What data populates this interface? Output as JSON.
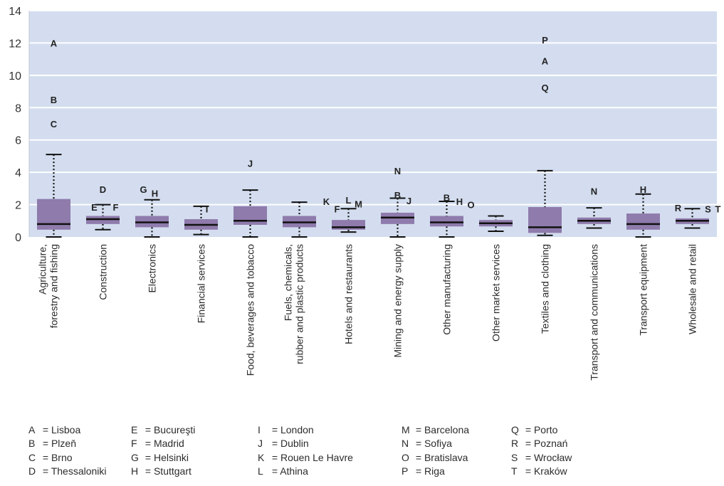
{
  "chart_data": {
    "type": "box",
    "ylim": [
      0,
      14
    ],
    "yticks": [
      0,
      2,
      4,
      6,
      8,
      10,
      12,
      14
    ],
    "grid": true,
    "colors": {
      "plot_bg": "#d3ddef",
      "box": "#8f7bac",
      "median": "#111111",
      "whisker": "#111111",
      "grid": "#ffffff"
    },
    "categories": [
      {
        "label": [
          "Agriculture,",
          "forestry and fishing"
        ],
        "min": 0.0,
        "q1": 0.45,
        "median": 0.8,
        "q3": 2.35,
        "max": 5.1,
        "outliers": [
          {
            "code": "A",
            "y": 12.0,
            "dx": 0
          },
          {
            "code": "B",
            "y": 8.5,
            "dx": 0
          },
          {
            "code": "C",
            "y": 7.0,
            "dx": 0
          }
        ]
      },
      {
        "label": [
          "Construction"
        ],
        "min": 0.45,
        "q1": 0.8,
        "median": 1.1,
        "q3": 1.3,
        "max": 2.0,
        "outliers": [
          {
            "code": "D",
            "y": 2.95,
            "dx": 0
          },
          {
            "code": "E",
            "y": 1.85,
            "dx": -12
          },
          {
            "code": "F",
            "y": 1.85,
            "dx": 18
          }
        ]
      },
      {
        "label": [
          "Electronics"
        ],
        "min": 0.0,
        "q1": 0.6,
        "median": 0.9,
        "q3": 1.3,
        "max": 2.3,
        "outliers": [
          {
            "code": "G",
            "y": 2.95,
            "dx": -12
          },
          {
            "code": "H",
            "y": 2.7,
            "dx": 4
          }
        ]
      },
      {
        "label": [
          "Financial services"
        ],
        "min": 0.15,
        "q1": 0.45,
        "median": 0.75,
        "q3": 1.1,
        "max": 1.9,
        "outliers": [
          {
            "code": "I",
            "y": 1.75,
            "dx": 8
          }
        ]
      },
      {
        "label": [
          "Food, beverages and tobacco"
        ],
        "min": 0.0,
        "q1": 0.75,
        "median": 1.0,
        "q3": 1.9,
        "max": 2.9,
        "outliers": [
          {
            "code": "J",
            "y": 4.55,
            "dx": 0
          }
        ]
      },
      {
        "label": [
          "Fuels, chemicals,",
          "rubber and plastic products"
        ],
        "min": 0.0,
        "q1": 0.6,
        "median": 0.9,
        "q3": 1.3,
        "max": 2.15,
        "outliers": [
          {
            "code": "K",
            "y": 2.2,
            "dx": 38
          }
        ]
      },
      {
        "label": [
          "Hotels and restaurants"
        ],
        "min": 0.3,
        "q1": 0.45,
        "median": 0.6,
        "q3": 1.05,
        "max": 1.75,
        "outliers": [
          {
            "code": "L",
            "y": 2.3,
            "dx": 0
          },
          {
            "code": "F",
            "y": 1.75,
            "dx": -16
          },
          {
            "code": "M",
            "y": 2.05,
            "dx": 14
          }
        ]
      },
      {
        "label": [
          "Mining and energy supply"
        ],
        "min": 0.0,
        "q1": 0.8,
        "median": 1.2,
        "q3": 1.5,
        "max": 2.4,
        "outliers": [
          {
            "code": "N",
            "y": 4.1,
            "dx": 0
          },
          {
            "code": "B",
            "y": 2.6,
            "dx": 0
          },
          {
            "code": "J",
            "y": 2.25,
            "dx": 16
          }
        ]
      },
      {
        "label": [
          "Other manufacturing"
        ],
        "min": 0.0,
        "q1": 0.65,
        "median": 0.9,
        "q3": 1.3,
        "max": 2.2,
        "outliers": [
          {
            "code": "B",
            "y": 2.45,
            "dx": 0
          },
          {
            "code": "H",
            "y": 2.2,
            "dx": 18
          },
          {
            "code": "O",
            "y": 2.0,
            "dx": 34
          }
        ]
      },
      {
        "label": [
          "Other market services"
        ],
        "min": 0.35,
        "q1": 0.65,
        "median": 0.85,
        "q3": 1.05,
        "max": 1.3,
        "outliers": []
      },
      {
        "label": [
          "Textiles and clothing"
        ],
        "min": 0.1,
        "q1": 0.25,
        "median": 0.6,
        "q3": 1.85,
        "max": 4.1,
        "outliers": [
          {
            "code": "P",
            "y": 12.2,
            "dx": 0
          },
          {
            "code": "A",
            "y": 10.9,
            "dx": 0
          },
          {
            "code": "Q",
            "y": 9.25,
            "dx": 0
          }
        ]
      },
      {
        "label": [
          "Transport and communications"
        ],
        "min": 0.55,
        "q1": 0.8,
        "median": 1.0,
        "q3": 1.2,
        "max": 1.8,
        "outliers": [
          {
            "code": "N",
            "y": 2.85,
            "dx": 0
          }
        ]
      },
      {
        "label": [
          "Transport equipment"
        ],
        "min": 0.0,
        "q1": 0.45,
        "median": 0.8,
        "q3": 1.45,
        "max": 2.65,
        "outliers": [
          {
            "code": "H",
            "y": 2.95,
            "dx": 0
          }
        ]
      },
      {
        "label": [
          "Wholesale and retail"
        ],
        "min": 0.55,
        "q1": 0.8,
        "median": 1.0,
        "q3": 1.15,
        "max": 1.75,
        "outliers": [
          {
            "code": "R",
            "y": 1.8,
            "dx": -20
          },
          {
            "code": "S",
            "y": 1.75,
            "dx": 22
          },
          {
            "code": "T",
            "y": 1.75,
            "dx": 36
          }
        ]
      }
    ]
  },
  "legend": [
    {
      "code": "A",
      "city": "Lisboa"
    },
    {
      "code": "B",
      "city": "Plzeň"
    },
    {
      "code": "C",
      "city": "Brno"
    },
    {
      "code": "D",
      "city": "Thessaloniki"
    },
    {
      "code": "E",
      "city": "Bucureşti"
    },
    {
      "code": "F",
      "city": "Madrid"
    },
    {
      "code": "G",
      "city": "Helsinki"
    },
    {
      "code": "H",
      "city": "Stuttgart"
    },
    {
      "code": "I",
      "city": "London"
    },
    {
      "code": "J",
      "city": "Dublin"
    },
    {
      "code": "K",
      "city": "Rouen Le Havre"
    },
    {
      "code": "L",
      "city": "Athina"
    },
    {
      "code": "M",
      "city": "Barcelona"
    },
    {
      "code": "N",
      "city": "Sofiya"
    },
    {
      "code": "O",
      "city": "Bratislava"
    },
    {
      "code": "P",
      "city": "Riga"
    },
    {
      "code": "Q",
      "city": "Porto"
    },
    {
      "code": "R",
      "city": "Poznań"
    },
    {
      "code": "S",
      "city": "Wrocław"
    },
    {
      "code": "T",
      "city": "Kraków"
    }
  ]
}
